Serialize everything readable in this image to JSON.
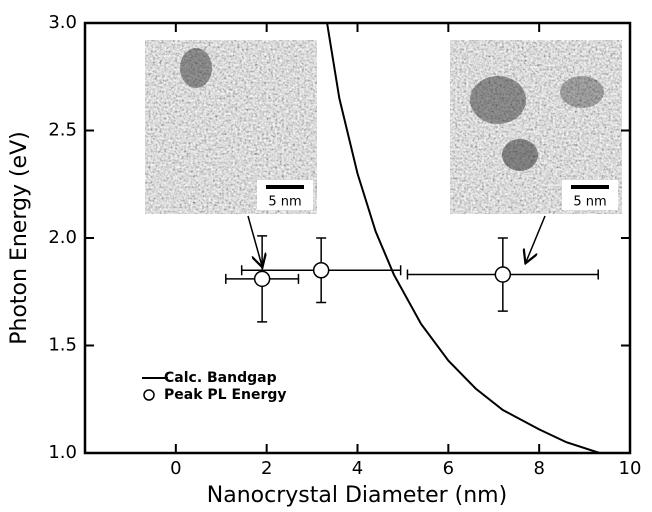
{
  "chart_data": {
    "type": "scatter",
    "x_label": "Nanocrystal Diameter (nm)",
    "y_label": "Photon Energy (eV)",
    "xlim": [
      -2,
      10
    ],
    "xticks": [
      0,
      2,
      4,
      6,
      8,
      10
    ],
    "ylim": [
      1,
      3
    ],
    "yticks": [
      {
        "value": 1,
        "label": "1.0"
      },
      1.5,
      {
        "value": 2,
        "label": "2.0"
      },
      2.5,
      {
        "value": 3,
        "label": "3.0"
      }
    ],
    "legend": "lower left",
    "series": [
      {
        "name": "Calc. Bandgap",
        "type": "line",
        "color": "#000000",
        "x": [
          3.33,
          3.6,
          4.0,
          4.4,
          4.8,
          5.4,
          6.0,
          6.6,
          7.2,
          8.0,
          8.6,
          9.33
        ],
        "values": [
          3.0,
          2.65,
          2.3,
          2.03,
          1.83,
          1.6,
          1.43,
          1.3,
          1.2,
          1.11,
          1.05,
          1.0
        ]
      },
      {
        "name": "Peak PL Energy",
        "type": "scatter",
        "color": "#000000",
        "x": [
          1.9,
          3.2,
          7.2
        ],
        "values": [
          1.81,
          1.85,
          1.83
        ],
        "xerr": [
          0.8,
          1.75,
          2.1
        ],
        "yerr": [
          0.2,
          0.15,
          0.17
        ]
      }
    ],
    "insets": [
      {
        "scale_label": "5 nm"
      },
      {
        "scale_label": "5 nm"
      }
    ]
  }
}
